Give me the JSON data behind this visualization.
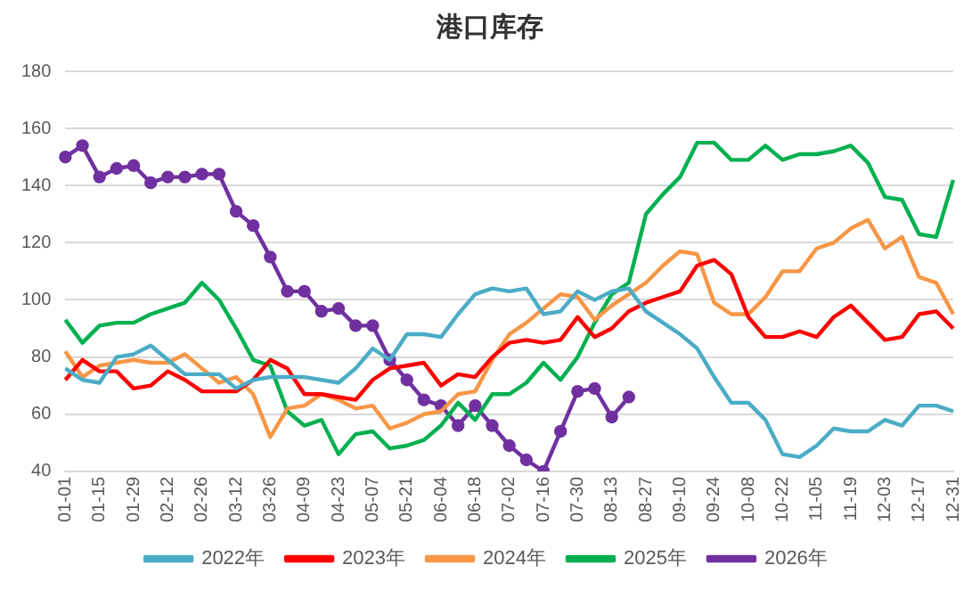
{
  "chart_data": {
    "type": "line",
    "title": "港口库存",
    "categories": [
      "01-01",
      null,
      "01-15",
      null,
      "01-29",
      null,
      "02-12",
      null,
      "02-26",
      null,
      "03-12",
      null,
      "03-26",
      null,
      "04-09",
      null,
      "04-23",
      null,
      "05-07",
      null,
      "05-21",
      null,
      "06-04",
      null,
      "06-18",
      null,
      "07-02",
      null,
      "07-16",
      null,
      "07-30",
      null,
      "08-13",
      null,
      "08-27",
      null,
      "09-10",
      null,
      "09-24",
      null,
      "10-08",
      null,
      "10-22",
      null,
      "11-05",
      null,
      "11-19",
      null,
      "12-03",
      null,
      "12-17",
      null,
      "12-31"
    ],
    "series": [
      {
        "name": "2022年",
        "color": "#4bacc6",
        "marker": "none",
        "values": [
          76,
          72,
          71,
          80,
          81,
          84,
          79,
          74,
          74,
          74,
          69,
          72,
          73,
          73,
          73,
          72,
          71,
          76,
          83,
          79,
          88,
          88,
          87,
          95,
          102,
          104,
          103,
          104,
          95,
          96,
          103,
          100,
          103,
          104,
          96,
          92,
          88,
          83,
          73,
          64,
          64,
          58,
          46,
          45,
          49,
          55,
          54,
          54,
          58,
          56,
          63,
          63,
          61
        ]
      },
      {
        "name": "2023年",
        "color": "#ff0000",
        "marker": "none",
        "values": [
          72,
          79,
          75,
          75,
          69,
          70,
          75,
          72,
          68,
          68,
          68,
          72,
          79,
          76,
          67,
          67,
          66,
          65,
          72,
          76,
          77,
          78,
          70,
          74,
          73,
          80,
          85,
          86,
          85,
          86,
          94,
          87,
          90,
          96,
          99,
          101,
          103,
          112,
          114,
          109,
          94,
          87,
          87,
          89,
          87,
          94,
          98,
          92,
          86,
          87,
          95,
          96,
          90
        ]
      },
      {
        "name": "2024年",
        "color": "#f79646",
        "marker": "none",
        "values": [
          82,
          73,
          77,
          78,
          79,
          78,
          78,
          81,
          76,
          71,
          73,
          67,
          52,
          62,
          63,
          67,
          65,
          62,
          63,
          55,
          57,
          60,
          61,
          67,
          68,
          79,
          88,
          92,
          97,
          102,
          101,
          93,
          98,
          102,
          106,
          112,
          117,
          116,
          99,
          95,
          95,
          101,
          110,
          110,
          118,
          120,
          125,
          128,
          118,
          122,
          108,
          106,
          95
        ]
      },
      {
        "name": "2025年",
        "color": "#00b050",
        "marker": "none",
        "values": [
          93,
          85,
          91,
          92,
          92,
          95,
          97,
          99,
          106,
          100,
          90,
          79,
          77,
          61,
          56,
          58,
          46,
          53,
          54,
          48,
          49,
          51,
          56,
          64,
          58,
          67,
          67,
          71,
          78,
          72,
          80,
          92,
          102,
          106,
          130,
          137,
          143,
          155,
          155,
          149,
          149,
          154,
          149,
          151,
          151,
          152,
          154,
          148,
          136,
          135,
          123,
          122,
          142
        ]
      },
      {
        "name": "2026年",
        "color": "#7030a0",
        "marker": "circle",
        "values": [
          150,
          154,
          143,
          146,
          147,
          141,
          143,
          143,
          144,
          144,
          131,
          126,
          115,
          103,
          103,
          96,
          97,
          91,
          91,
          79,
          72,
          65,
          63,
          56,
          63,
          56,
          49,
          44,
          40,
          54,
          68,
          69,
          59,
          66,
          null,
          null,
          null,
          null,
          null,
          null,
          null,
          null,
          null,
          null,
          null,
          null,
          null,
          null,
          null,
          null,
          null,
          null,
          null
        ]
      }
    ],
    "ylim": [
      40,
      180
    ],
    "yticks": [
      40,
      60,
      80,
      100,
      120,
      140,
      160,
      180
    ],
    "grid": "y",
    "legend": "bottom"
  }
}
